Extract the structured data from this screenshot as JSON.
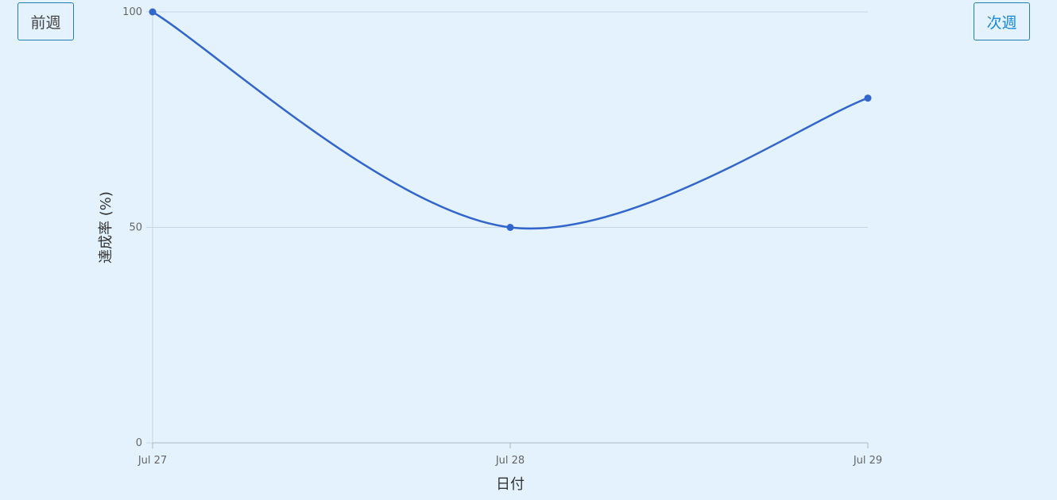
{
  "navigation": {
    "prev_label": "前週",
    "next_label": "次週"
  },
  "chart_data": {
    "type": "line",
    "x": [
      "Jul 27",
      "Jul 28",
      "Jul 29"
    ],
    "values": [
      100,
      50,
      80
    ],
    "xlabel": "日付",
    "ylabel": "達成率 (%)",
    "ylim": [
      0,
      100
    ],
    "yticks": [
      "0",
      "50",
      "100"
    ],
    "grid": true,
    "curve": "smooth",
    "line_color": "#3366cc"
  }
}
